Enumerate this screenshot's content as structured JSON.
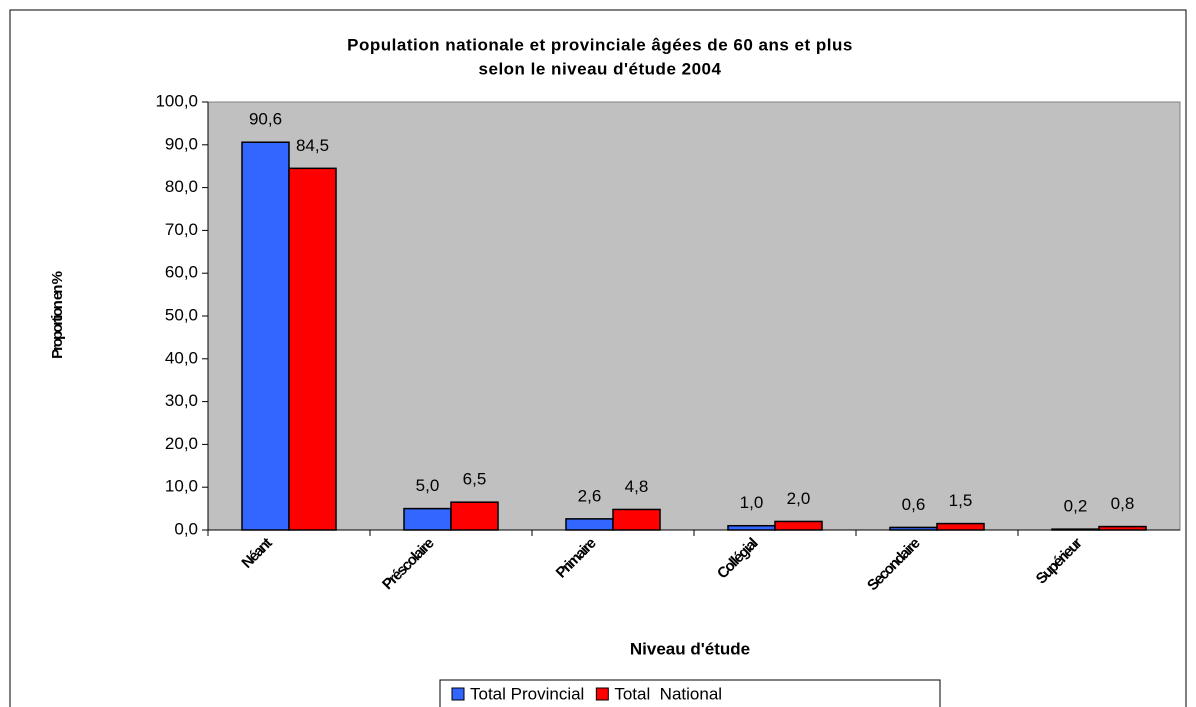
{
  "chart_data": {
    "type": "bar",
    "title": [
      "Population nationale et provinciale âgées de 60 ans et plus",
      "selon le niveau d'étude  2004"
    ],
    "x_label": "Niveau d'étude",
    "y_label": "Proportion en %",
    "categories": [
      "Néant",
      "Préscolaire",
      "Primaire",
      "Collégial",
      "Secondaire",
      "Supérieur"
    ],
    "series": [
      {
        "name": "Total Provincial",
        "color": "#3366ff",
        "values": [
          90.6,
          5.0,
          2.6,
          1.0,
          0.6,
          0.2
        ],
        "value_labels": [
          "90,6",
          "5,0",
          "2,6",
          "1,0",
          "0,6",
          "0,2"
        ]
      },
      {
        "name": "Total  National",
        "color": "#ff0000",
        "values": [
          84.5,
          6.5,
          4.8,
          2.0,
          1.5,
          0.8
        ],
        "value_labels": [
          "84,5",
          "6,5",
          "4,8",
          "2,0",
          "1,5",
          "0,8"
        ]
      }
    ],
    "ylim": [
      0,
      100
    ],
    "yticks": [
      {
        "value": 0,
        "label": "0,0"
      },
      {
        "value": 10,
        "label": "10,0"
      },
      {
        "value": 20,
        "label": "20,0"
      },
      {
        "value": 30,
        "label": "30,0"
      },
      {
        "value": 40,
        "label": "40,0"
      },
      {
        "value": 50,
        "label": "50,0"
      },
      {
        "value": 60,
        "label": "60,0"
      },
      {
        "value": 70,
        "label": "70,0"
      },
      {
        "value": 80,
        "label": "80,0"
      },
      {
        "value": 90,
        "label": "90,0"
      },
      {
        "value": 100,
        "label": "100,0"
      }
    ],
    "grid": false,
    "legend": "bottom",
    "plot_background": "#c0c0c0"
  }
}
